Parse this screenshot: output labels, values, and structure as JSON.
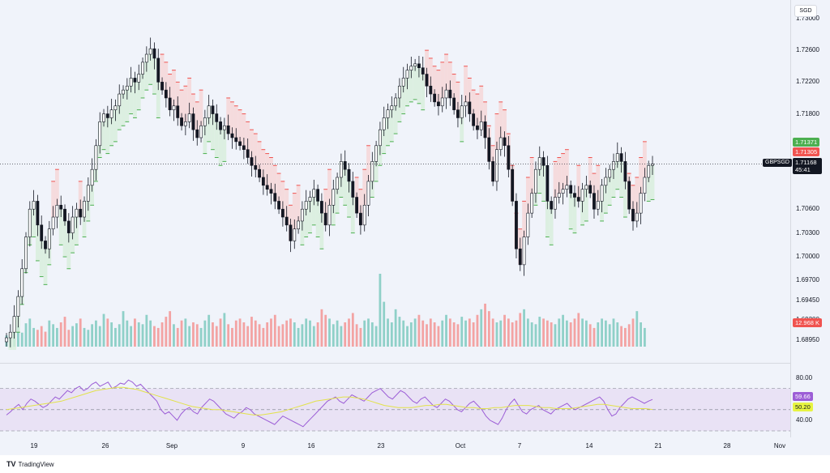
{
  "chart_data": [
    {
      "type": "candlestick",
      "symbol": "GBPSGD",
      "currency": "SGD",
      "ylim": [
        1.6895,
        1.7305
      ],
      "last_price": "1.71168",
      "countdown": "45:41",
      "tags": {
        "upper": "1.71371",
        "lower": "1.71305",
        "volume": "12.968 K"
      },
      "y_ticks": [
        "1.73000",
        "1.72600",
        "1.72200",
        "1.71800",
        "1.70600",
        "1.70300",
        "1.70000",
        "1.69700",
        "1.69450",
        "1.69200",
        "1.68950"
      ],
      "x_ticks": [
        "19",
        "26",
        "Sep",
        "9",
        "16",
        "23",
        "Oct",
        "7",
        "14",
        "21",
        "28",
        "Nov"
      ],
      "close_series": [
        1.6898,
        1.6905,
        1.6925,
        1.695,
        1.6985,
        1.7025,
        1.706,
        1.707,
        1.704,
        1.702,
        1.701,
        1.7035,
        1.705,
        1.7065,
        1.706,
        1.7045,
        1.703,
        1.705,
        1.706,
        1.705,
        1.707,
        1.709,
        1.711,
        1.714,
        1.717,
        1.718,
        1.7175,
        1.7185,
        1.719,
        1.7205,
        1.721,
        1.7215,
        1.7225,
        1.722,
        1.723,
        1.7245,
        1.7255,
        1.7262,
        1.725,
        1.722,
        1.721,
        1.72,
        1.7185,
        1.719,
        1.7175,
        1.7165,
        1.717,
        1.718,
        1.716,
        1.715,
        1.7165,
        1.7175,
        1.719,
        1.718,
        1.717,
        1.716,
        1.7165,
        1.7155,
        1.715,
        1.7145,
        1.714,
        1.7135,
        1.7125,
        1.7115,
        1.711,
        1.71,
        1.709,
        1.7085,
        1.708,
        1.707,
        1.706,
        1.705,
        1.704,
        1.702,
        1.7035,
        1.7045,
        1.706,
        1.707,
        1.7075,
        1.7085,
        1.707,
        1.7055,
        1.704,
        1.7065,
        1.7085,
        1.71,
        1.712,
        1.711,
        1.7095,
        1.7075,
        1.7055,
        1.704,
        1.7065,
        1.7095,
        1.712,
        1.714,
        1.716,
        1.7175,
        1.7185,
        1.719,
        1.72,
        1.7215,
        1.7225,
        1.7235,
        1.724,
        1.7243,
        1.7238,
        1.723,
        1.7215,
        1.7205,
        1.7195,
        1.719,
        1.72,
        1.721,
        1.72,
        1.7185,
        1.7175,
        1.719,
        1.7195,
        1.718,
        1.7165,
        1.716,
        1.717,
        1.715,
        1.712,
        1.7095,
        1.7135,
        1.715,
        1.714,
        1.711,
        1.707,
        1.701,
        1.699,
        1.7025,
        1.7055,
        1.708,
        1.711,
        1.7125,
        1.7115,
        1.707,
        1.706,
        1.7075,
        1.708,
        1.7085,
        1.709,
        1.708,
        1.7075,
        1.707,
        1.7085,
        1.709,
        1.708,
        1.706,
        1.707,
        1.709,
        1.71,
        1.711,
        1.712,
        1.713,
        1.712,
        1.7095,
        1.706,
        1.7045,
        1.7055,
        1.708,
        1.71,
        1.7115,
        1.7117
      ],
      "volume_series": [
        12,
        14,
        18,
        22,
        15,
        25,
        30,
        20,
        18,
        22,
        16,
        28,
        24,
        20,
        26,
        32,
        18,
        22,
        25,
        30,
        20,
        18,
        24,
        28,
        22,
        35,
        30,
        26,
        20,
        24,
        38,
        28,
        22,
        30,
        26,
        24,
        34,
        28,
        22,
        20,
        26,
        32,
        38,
        24,
        20,
        28,
        30,
        22,
        26,
        24,
        20,
        28,
        34,
        26,
        22,
        30,
        36,
        24,
        20,
        28,
        30,
        26,
        22,
        32,
        28,
        24,
        20,
        26,
        30,
        34,
        22,
        24,
        28,
        30,
        26,
        20,
        24,
        30,
        28,
        22,
        26,
        40,
        34,
        30,
        24,
        28,
        22,
        26,
        30,
        36,
        24,
        20,
        28,
        30,
        26,
        22,
        78,
        48,
        30,
        26,
        40,
        32,
        28,
        22,
        26,
        30,
        34,
        28,
        24,
        30,
        26,
        22,
        28,
        34,
        30,
        26,
        24,
        32,
        28,
        30,
        26,
        34,
        40,
        46,
        38,
        30,
        26,
        28,
        34,
        30,
        26,
        28,
        36,
        40,
        30,
        26,
        24,
        32,
        30,
        28,
        26,
        24,
        30,
        34,
        28,
        26,
        30,
        36,
        30,
        28,
        24,
        20,
        26,
        30,
        28,
        24,
        30,
        26,
        22,
        20,
        24,
        30,
        38,
        26,
        20
      ]
    },
    {
      "type": "line",
      "name": "RSI",
      "ylim": [
        30,
        85
      ],
      "y_ticks": [
        "80.00",
        "40.00"
      ],
      "tags": {
        "rsi": "59.66",
        "ma": "50.20"
      },
      "rsi_series": [
        45,
        48,
        52,
        55,
        50,
        56,
        60,
        58,
        55,
        52,
        54,
        58,
        62,
        60,
        64,
        68,
        66,
        70,
        72,
        68,
        70,
        74,
        76,
        72,
        74,
        76,
        70,
        72,
        75,
        74,
        78,
        76,
        72,
        74,
        70,
        66,
        62,
        58,
        50,
        46,
        48,
        44,
        40,
        46,
        50,
        52,
        48,
        46,
        52,
        56,
        60,
        58,
        54,
        50,
        46,
        44,
        42,
        46,
        48,
        52,
        50,
        46,
        44,
        42,
        40,
        38,
        36,
        40,
        44,
        42,
        40,
        38,
        36,
        34,
        38,
        42,
        46,
        50,
        54,
        58,
        60,
        62,
        58,
        56,
        60,
        64,
        62,
        60,
        58,
        62,
        66,
        68,
        70,
        66,
        62,
        60,
        64,
        68,
        66,
        62,
        58,
        56,
        60,
        62,
        58,
        54,
        52,
        56,
        60,
        58,
        54,
        50,
        48,
        52,
        56,
        58,
        54,
        50,
        44,
        40,
        38,
        36,
        42,
        50,
        56,
        60,
        54,
        48,
        46,
        50,
        52,
        54,
        50,
        48,
        46,
        50,
        52,
        54,
        56,
        52,
        50,
        52,
        54,
        56,
        58,
        60,
        62,
        58,
        50,
        44,
        46,
        52,
        56,
        60,
        62,
        60,
        58,
        56,
        58,
        59.66
      ],
      "ma_series": [
        50,
        51,
        52,
        53,
        54,
        55,
        56,
        57,
        58,
        60,
        62,
        64,
        66,
        68,
        69,
        70,
        71,
        71,
        70,
        69,
        67,
        65,
        63,
        61,
        59,
        57,
        55,
        53,
        52,
        51,
        50,
        50,
        49,
        48,
        47,
        46,
        45,
        45,
        46,
        47,
        48,
        50,
        52,
        54,
        56,
        58,
        59,
        60,
        61,
        62,
        62,
        61,
        60,
        58,
        56,
        54,
        53,
        52,
        52,
        52,
        53,
        54,
        54,
        55,
        55,
        54,
        53,
        52,
        52,
        51,
        51,
        52,
        52,
        53,
        54,
        54,
        54,
        53,
        52,
        52,
        51,
        51,
        51,
        52,
        53,
        54,
        55,
        55,
        54,
        53,
        52,
        51,
        51,
        51,
        50.2
      ]
    }
  ],
  "footer": {
    "brand": "TradingView"
  }
}
